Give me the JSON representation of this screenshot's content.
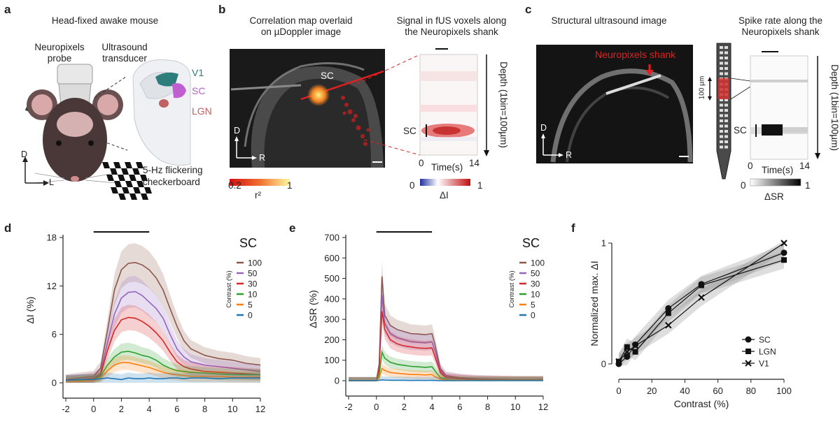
{
  "panel_labels": {
    "a": "a",
    "b": "b",
    "c": "c",
    "d": "d",
    "e": "e",
    "f": "f"
  },
  "panel_a": {
    "title": "Head-fixed awake mouse",
    "probe_label_1": "Neuropixels",
    "probe_label_2": "probe",
    "transducer_label_1": "Ultrasound",
    "transducer_label_2": "transducer",
    "regions": [
      "V1",
      "SC",
      "LGN"
    ],
    "region_colors": [
      "#2e7d7d",
      "#c060d0",
      "#c06060"
    ],
    "axis_d": "D",
    "axis_l": "L",
    "stimulus_1": "5-Hz flickering",
    "stimulus_2": "checkerboard"
  },
  "panel_b": {
    "title_left_1": "Correlation map overlaid",
    "title_left_2": "on µDoppler image",
    "title_right_1": "Signal in fUS voxels along",
    "title_right_2": "the Neuropixels shank",
    "sc_label": "SC",
    "axis_d": "D",
    "axis_r": "R",
    "cbar_left_min": "0.2",
    "cbar_left_max": "1",
    "cbar_left_label": "r²",
    "cbar_right_min": "0",
    "cbar_right_max": "1",
    "cbar_right_label": "ΔI",
    "heat_sc": "SC",
    "x_min": "0",
    "x_max": "14",
    "x_label": "Time(s)",
    "depth_label": "Depth (1bin=100µm)"
  },
  "panel_c": {
    "title_left": "Structural ultrasound image",
    "title_right_1": "Spike rate along the",
    "title_right_2": "Neuropixels shank",
    "shank_label": "Neuropixels shank",
    "axis_d": "D",
    "axis_r": "R",
    "scale_label": "100 µm",
    "heat_sc": "SC",
    "x_min": "0",
    "x_max": "14",
    "x_label": "Time(s)",
    "depth_label": "Depth (1bin=100µm)",
    "cbar_min": "0",
    "cbar_max": "1",
    "cbar_label": "ΔSR"
  },
  "chart_data": [
    {
      "panel": "d",
      "type": "line",
      "title": "SC",
      "ylabel": "ΔI (%)",
      "xlabel": "",
      "xlim": [
        -2,
        12
      ],
      "ylim": [
        0,
        18
      ],
      "xticks": [
        -2,
        0,
        2,
        4,
        6,
        8,
        10,
        12
      ],
      "yticks": [
        0,
        6,
        12,
        18
      ],
      "stim_bar": [
        0,
        4
      ],
      "legend_title": "Contrast (%)",
      "x": [
        -2,
        -1,
        0,
        0.5,
        1,
        1.5,
        2,
        2.5,
        3,
        3.5,
        4,
        4.5,
        5,
        5.5,
        6,
        6.5,
        7,
        8,
        9,
        10,
        11,
        12
      ],
      "series": [
        {
          "name": "100",
          "color": "#8c564b",
          "values": [
            0.4,
            0.6,
            0.8,
            1.8,
            6.5,
            11.5,
            14.0,
            14.8,
            14.9,
            14.6,
            14.0,
            13.0,
            11.5,
            9.2,
            7.0,
            5.2,
            4.2,
            3.4,
            3.0,
            2.8,
            2.4,
            2.2
          ]
        },
        {
          "name": "50",
          "color": "#9467bd",
          "values": [
            0.3,
            0.4,
            0.6,
            1.2,
            5.0,
            8.5,
            10.5,
            11.2,
            11.3,
            10.8,
            10.0,
            9.2,
            8.0,
            6.0,
            4.2,
            3.2,
            2.6,
            2.2,
            2.0,
            1.8,
            1.6,
            1.4
          ]
        },
        {
          "name": "30",
          "color": "#d62728",
          "values": [
            0.3,
            0.4,
            0.5,
            1.0,
            4.0,
            6.5,
            7.8,
            8.1,
            8.0,
            7.6,
            7.0,
            6.2,
            5.2,
            3.8,
            2.6,
            2.0,
            1.7,
            1.4,
            1.3,
            1.2,
            1.1,
            1.0
          ]
        },
        {
          "name": "10",
          "color": "#2ca02c",
          "values": [
            0.2,
            0.3,
            0.4,
            0.8,
            2.2,
            3.2,
            3.8,
            3.9,
            3.7,
            3.4,
            3.2,
            2.8,
            2.2,
            1.8,
            1.5,
            1.4,
            1.3,
            1.2,
            1.1,
            1.0,
            1.0,
            1.0
          ]
        },
        {
          "name": "5",
          "color": "#ff7f0e",
          "values": [
            0.2,
            0.2,
            0.3,
            0.6,
            1.5,
            2.2,
            2.5,
            2.5,
            2.3,
            2.1,
            1.9,
            1.6,
            1.3,
            1.1,
            1.0,
            0.9,
            0.8,
            0.8,
            0.8,
            0.7,
            0.7,
            0.7
          ]
        },
        {
          "name": "0",
          "color": "#1f77b4",
          "values": [
            0.3,
            0.4,
            0.4,
            0.5,
            0.6,
            0.5,
            0.4,
            0.6,
            0.5,
            0.5,
            0.6,
            0.5,
            0.5,
            0.6,
            0.6,
            0.5,
            0.6,
            0.6,
            0.5,
            0.6,
            0.6,
            0.6
          ]
        }
      ]
    },
    {
      "panel": "e",
      "type": "line",
      "title": "SC",
      "ylabel": "ΔSR  (%)",
      "xlabel": "",
      "xlim": [
        -2,
        12
      ],
      "ylim": [
        0,
        700
      ],
      "xticks": [
        -2,
        0,
        2,
        4,
        6,
        8,
        10,
        12
      ],
      "yticks": [
        0,
        100,
        200,
        300,
        400,
        500,
        600,
        700
      ],
      "stim_bar": [
        0,
        4
      ],
      "legend_title": "Contrast (%)",
      "x": [
        -2,
        -1,
        0,
        0.2,
        0.4,
        0.6,
        1,
        1.5,
        2,
        2.5,
        3,
        3.5,
        4,
        4.2,
        4.6,
        5,
        6,
        7,
        8,
        10,
        12
      ],
      "series": [
        {
          "name": "100",
          "color": "#8c564b",
          "values": [
            0,
            0,
            0,
            80,
            510,
            320,
            270,
            250,
            240,
            230,
            228,
            225,
            230,
            180,
            60,
            25,
            15,
            10,
            8,
            5,
            5
          ]
        },
        {
          "name": "50",
          "color": "#9467bd",
          "values": [
            0,
            0,
            0,
            70,
            420,
            280,
            230,
            210,
            200,
            190,
            188,
            185,
            190,
            150,
            50,
            20,
            12,
            8,
            6,
            4,
            4
          ]
        },
        {
          "name": "30",
          "color": "#d62728",
          "values": [
            0,
            0,
            0,
            60,
            340,
            250,
            200,
            180,
            170,
            165,
            160,
            158,
            160,
            120,
            40,
            15,
            10,
            6,
            5,
            4,
            4
          ]
        },
        {
          "name": "10",
          "color": "#2ca02c",
          "values": [
            0,
            0,
            0,
            30,
            140,
            110,
            90,
            80,
            75,
            70,
            68,
            65,
            68,
            50,
            15,
            5,
            3,
            2,
            2,
            2,
            2
          ]
        },
        {
          "name": "5",
          "color": "#ff7f0e",
          "values": [
            0,
            0,
            0,
            15,
            60,
            50,
            40,
            36,
            33,
            30,
            30,
            28,
            30,
            20,
            8,
            3,
            2,
            1,
            1,
            1,
            1
          ]
        },
        {
          "name": "0",
          "color": "#1f77b4",
          "values": [
            0,
            0,
            0,
            2,
            4,
            3,
            2,
            2,
            2,
            1,
            2,
            1,
            2,
            1,
            0,
            0,
            0,
            0,
            0,
            0,
            0
          ]
        }
      ]
    },
    {
      "panel": "f",
      "type": "line",
      "title": "",
      "ylabel": "Normalized max. ΔI",
      "xlabel": "Contrast (%)",
      "xlim": [
        0,
        100
      ],
      "ylim": [
        0,
        1
      ],
      "xticks": [
        0,
        20,
        40,
        60,
        80,
        100
      ],
      "yticks": [
        0,
        1
      ],
      "categories": [
        0,
        5,
        10,
        30,
        50,
        100
      ],
      "series": [
        {
          "name": "SC",
          "marker": "circle",
          "values": [
            0.0,
            0.06,
            0.16,
            0.46,
            0.66,
            0.92
          ]
        },
        {
          "name": "LGN",
          "marker": "square",
          "values": [
            0.02,
            0.14,
            0.1,
            0.42,
            0.65,
            0.86
          ]
        },
        {
          "name": "V1",
          "marker": "x",
          "values": [
            0.02,
            0.1,
            0.15,
            0.32,
            0.55,
            1.0
          ]
        }
      ]
    }
  ]
}
